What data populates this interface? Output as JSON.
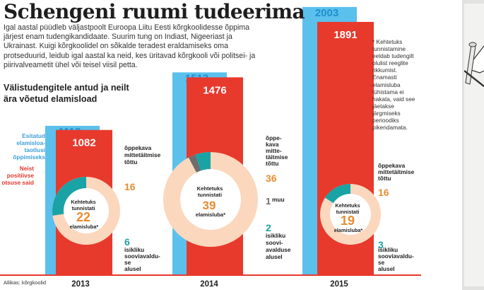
{
  "title": "Schengeni ruumi tudeerima",
  "intro": "Igal aastal püüdleb väljastpoolt Euroopa Liitu Eesti kõrgkoolidesse õppima järjest enam tudengikandidaate. Suurim tung on Indiast, Nigeeriast ja Ukrainast. Kuigi kõrgkoolidel on sõkalde teradest eraldamiseks oma protseduurid, leidub igal aastal ka neid, kes üritavad kõrgkooli või politsei- ja piirivalveametit ühel või teisel viisil petta.",
  "subtitle": "Välistudengitele antud ja neilt ära võetud elamisload",
  "footnote": "* Kehtetuks tunnistamine eeldab tudengilt olulist reeglite rikkumist. Enamasti elamisluba tühistama ei hakata, vaid see jäetakse järgmiseks perioodiks pikendamata.",
  "source": "Allikas: kõrgkoolid",
  "legend": {
    "blue": "Esitatud elamisloa-taotlusi õppimiseks",
    "red": "Neist positiivse otsuse said"
  },
  "colors": {
    "blue": "#5bc0ec",
    "red": "#e8392d",
    "donut_ring": "#fbd7bd",
    "orange": "#e98c2f",
    "teal": "#1aa3a5",
    "grey": "#6e6e6e",
    "center": "#ffffff"
  },
  "donut_center": {
    "line1": "Kehtetuks",
    "line2": "tunnistati",
    "line3": "elamisluba*"
  },
  "chart_data": {
    "type": "bar",
    "categories": [
      "2013",
      "2014",
      "2015"
    ],
    "series": [
      {
        "name": "Esitatud elamisloataotlusi õppimiseks",
        "values": [
          1113,
          1513,
          2003
        ]
      },
      {
        "name": "Neist positiivse otsuse said",
        "values": [
          1082,
          1476,
          1891
        ]
      }
    ],
    "revoked": [
      {
        "year": "2013",
        "total": 22,
        "parts": [
          {
            "label": "õppekava mittetäitmise tõttu",
            "value": 16,
            "color": "orange"
          },
          {
            "label": "isikliku soovi-avalduse alusel",
            "value": 6,
            "color": "teal"
          }
        ]
      },
      {
        "year": "2014",
        "total": 39,
        "parts": [
          {
            "label": "õppekava mittetäitmise tõttu",
            "value": 36,
            "color": "orange"
          },
          {
            "label": "muu",
            "value": 1,
            "color": "grey"
          },
          {
            "label": "isikliku soovi-avalduse alusel",
            "value": 2,
            "color": "teal"
          }
        ]
      },
      {
        "year": "2015",
        "total": 19,
        "parts": [
          {
            "label": "õppekava mittetäitmise tõttu",
            "value": 16,
            "color": "orange"
          },
          {
            "label": "isikliku soovi-avalduse alusel",
            "value": 3,
            "color": "teal"
          }
        ]
      }
    ]
  }
}
